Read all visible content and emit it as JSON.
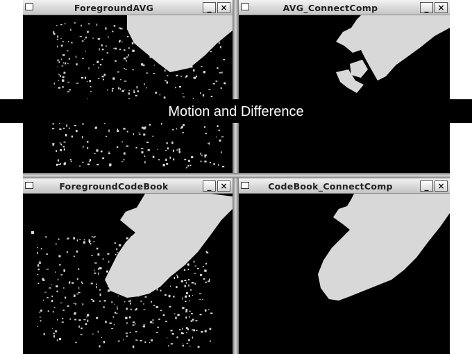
{
  "banner": {
    "text": "Motion and Difference"
  },
  "windows": [
    {
      "title": "ForegroundAVG",
      "minimize_label": "_",
      "close_label": "×"
    },
    {
      "title": "AVG_ConnectComp",
      "minimize_label": "_",
      "close_label": "×"
    },
    {
      "title": "ForegroundCodeBook",
      "minimize_label": "_",
      "close_label": "×"
    },
    {
      "title": "CodeBook_ConnectComp",
      "minimize_label": "_",
      "close_label": "×"
    }
  ],
  "colors": {
    "foreground_mask": "#d8d8d8",
    "background": "#000000",
    "titlebar": "#d6d6d6"
  },
  "icons": [
    "window-menu-icon",
    "minimize-icon",
    "close-icon"
  ]
}
